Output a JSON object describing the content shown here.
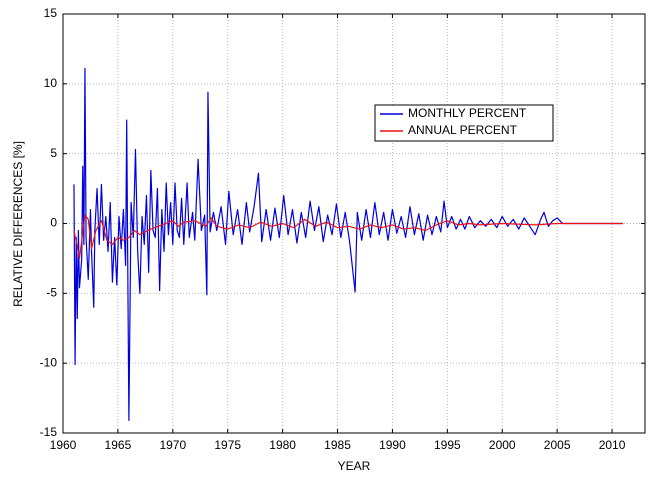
{
  "chart_data": {
    "type": "line",
    "xlabel": "YEAR",
    "ylabel": "RELATIVE DIFFERENCES [%]",
    "xlim": [
      1960,
      2013
    ],
    "ylim": [
      -15,
      15
    ],
    "xticks": [
      1960,
      1965,
      1970,
      1975,
      1980,
      1985,
      1990,
      1995,
      2000,
      2005,
      2010
    ],
    "yticks": [
      -15,
      -10,
      -5,
      0,
      5,
      10,
      15
    ],
    "grid": true,
    "series": [
      {
        "name": "MONTHLY PERCENT",
        "color": "#0000dd",
        "x": [
          1961.0,
          1961.1,
          1961.2,
          1961.3,
          1961.4,
          1961.5,
          1961.7,
          1961.8,
          1961.9,
          1962.0,
          1962.1,
          1962.3,
          1962.5,
          1962.6,
          1962.8,
          1962.9,
          1963.1,
          1963.3,
          1963.5,
          1963.7,
          1963.9,
          1964.1,
          1964.3,
          1964.5,
          1964.7,
          1964.9,
          1965.1,
          1965.3,
          1965.5,
          1965.7,
          1965.8,
          1966.0,
          1966.2,
          1966.4,
          1966.6,
          1966.8,
          1967.0,
          1967.2,
          1967.4,
          1967.6,
          1967.8,
          1968.0,
          1968.2,
          1968.4,
          1968.6,
          1968.8,
          1969.0,
          1969.2,
          1969.4,
          1969.6,
          1969.8,
          1970.0,
          1970.2,
          1970.4,
          1970.6,
          1970.8,
          1971.0,
          1971.3,
          1971.5,
          1971.8,
          1972.0,
          1972.3,
          1972.6,
          1972.9,
          1973.1,
          1973.2,
          1973.4,
          1973.7,
          1974.0,
          1974.4,
          1974.8,
          1975.1,
          1975.5,
          1975.9,
          1976.3,
          1976.7,
          1977.0,
          1977.4,
          1977.8,
          1978.1,
          1978.5,
          1978.9,
          1979.3,
          1979.7,
          1980.1,
          1980.5,
          1980.9,
          1981.3,
          1981.7,
          1982.1,
          1982.5,
          1982.9,
          1983.3,
          1983.7,
          1984.1,
          1984.5,
          1984.9,
          1985.3,
          1985.7,
          1986.1,
          1986.6,
          1986.8,
          1987.2,
          1987.6,
          1988.0,
          1988.4,
          1988.8,
          1989.2,
          1989.6,
          1990.0,
          1990.4,
          1990.8,
          1991.2,
          1991.6,
          1992.0,
          1992.4,
          1992.8,
          1993.2,
          1993.6,
          1994.0,
          1994.4,
          1994.7,
          1995.0,
          1995.4,
          1995.8,
          1996.2,
          1996.6,
          1997.0,
          1997.5,
          1998.0,
          1998.5,
          1999.0,
          1999.5,
          2000.0,
          2000.5,
          2001.0,
          2001.5,
          2002.0,
          2002.5,
          2003.0,
          2003.5,
          2003.8,
          2004.2,
          2004.6,
          2005.0,
          2005.5,
          2011.0
        ],
        "values": [
          2.8,
          -10.1,
          -1.0,
          -6.8,
          -0.5,
          -4.6,
          -2.6,
          4.1,
          -1.5,
          11.1,
          -1.0,
          -4.0,
          1.0,
          -2.0,
          -6.0,
          -0.5,
          2.5,
          -1.5,
          2.8,
          -1.2,
          0.5,
          -2.0,
          1.5,
          -4.2,
          -1.0,
          -4.4,
          0.5,
          -1.8,
          1.0,
          -3.0,
          7.4,
          -14.1,
          1.5,
          -1.0,
          5.3,
          -2.0,
          -5.0,
          0.5,
          -1.5,
          2.0,
          -3.5,
          3.8,
          -0.5,
          -1.0,
          2.5,
          -4.8,
          1.0,
          -2.0,
          2.9,
          -0.8,
          1.5,
          -1.5,
          2.9,
          -0.5,
          -1.0,
          1.8,
          -1.5,
          2.9,
          -1.0,
          0.8,
          -1.2,
          4.6,
          -0.5,
          0.6,
          -5.1,
          9.4,
          -0.6,
          0.8,
          -0.5,
          1.2,
          -1.5,
          2.3,
          -0.8,
          1.0,
          -1.5,
          1.5,
          -0.6,
          1.2,
          3.6,
          -1.3,
          1.0,
          -1.2,
          1.1,
          -1.0,
          2.0,
          -0.8,
          1.0,
          -1.4,
          0.8,
          -1.0,
          1.6,
          -0.5,
          1.2,
          -1.3,
          0.6,
          -0.8,
          1.4,
          -1.0,
          0.8,
          -1.3,
          -4.9,
          0.8,
          -1.2,
          1.0,
          -1.0,
          1.5,
          -0.8,
          0.8,
          -1.2,
          1.0,
          -0.7,
          0.5,
          -1.0,
          1.2,
          -0.8,
          0.7,
          -1.2,
          0.6,
          -0.8,
          0.5,
          -0.6,
          1.6,
          -0.3,
          0.5,
          -0.4,
          0.3,
          -0.4,
          0.5,
          -0.3,
          0.2,
          -0.2,
          0.3,
          -0.3,
          0.5,
          -0.2,
          0.3,
          -0.4,
          0.4,
          -0.2,
          -0.8,
          0.3,
          0.8,
          -0.2,
          0.2,
          0.4,
          0.0,
          0.0
        ]
      },
      {
        "name": "ANNUAL PERCENT",
        "color": "#ee1111",
        "x": [
          1961.0,
          1961.5,
          1962.0,
          1962.3,
          1962.6,
          1963.0,
          1963.5,
          1964.0,
          1964.5,
          1965.0,
          1965.5,
          1966.0,
          1966.5,
          1967.0,
          1968.0,
          1969.0,
          1970.0,
          1970.5,
          1971.0,
          1972.0,
          1973.0,
          1973.5,
          1974.0,
          1975.0,
          1976.0,
          1977.0,
          1978.0,
          1979.0,
          1980.0,
          1981.0,
          1982.0,
          1983.0,
          1984.0,
          1985.0,
          1986.0,
          1987.0,
          1988.0,
          1989.0,
          1990.0,
          1991.0,
          1992.0,
          1993.0,
          1994.0,
          1995.0,
          1996.0,
          1997.0,
          1998.0,
          2000.0,
          2003.0,
          2005.0,
          2011.0
        ],
        "values": [
          -0.5,
          -2.5,
          0.6,
          0.3,
          -1.8,
          -0.5,
          0.2,
          -1.2,
          -1.5,
          -1.0,
          -1.2,
          -1.0,
          -0.5,
          -0.8,
          -0.4,
          -0.1,
          0.2,
          -0.2,
          0.1,
          0.2,
          -0.2,
          0.4,
          -0.2,
          -0.4,
          -0.1,
          -0.3,
          0.1,
          -0.2,
          0.0,
          -0.3,
          0.3,
          -0.2,
          0.1,
          -0.3,
          -0.2,
          -0.4,
          -0.1,
          -0.3,
          -0.1,
          -0.4,
          -0.3,
          -0.5,
          -0.1,
          0.2,
          -0.1,
          0.0,
          -0.1,
          0.0,
          -0.1,
          0.0,
          0.0
        ]
      }
    ]
  }
}
